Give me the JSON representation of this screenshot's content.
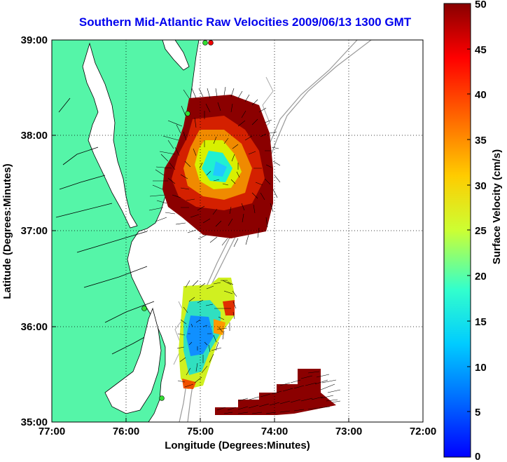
{
  "title": "Southern Mid-Atlantic Raw Velocities 2009/06/13 1300 GMT",
  "map": {
    "x_axis": {
      "label": "Longitude (Degrees:Minutes)",
      "ticks": [
        "77:00",
        "76:00",
        "75:00",
        "74:00",
        "73:00",
        "72:00"
      ]
    },
    "y_axis": {
      "label": "Latitude (Degrees:Minutes)",
      "ticks": [
        "39:00",
        "38:00",
        "37:00",
        "36:00",
        "35:00"
      ]
    },
    "land_color": "#55f5a8",
    "coast_color": "#000000",
    "grid": "dotted"
  },
  "colorbar": {
    "label": "Surface Velocity (cm/s)",
    "ticks": [
      "50",
      "45",
      "40",
      "35",
      "30",
      "25",
      "20",
      "15",
      "10",
      "5",
      "0"
    ],
    "range": [
      0,
      50
    ],
    "colormap": "jet"
  },
  "icons": {
    "radar_station": "green-circle",
    "radar_station_active": "red-circle"
  }
}
